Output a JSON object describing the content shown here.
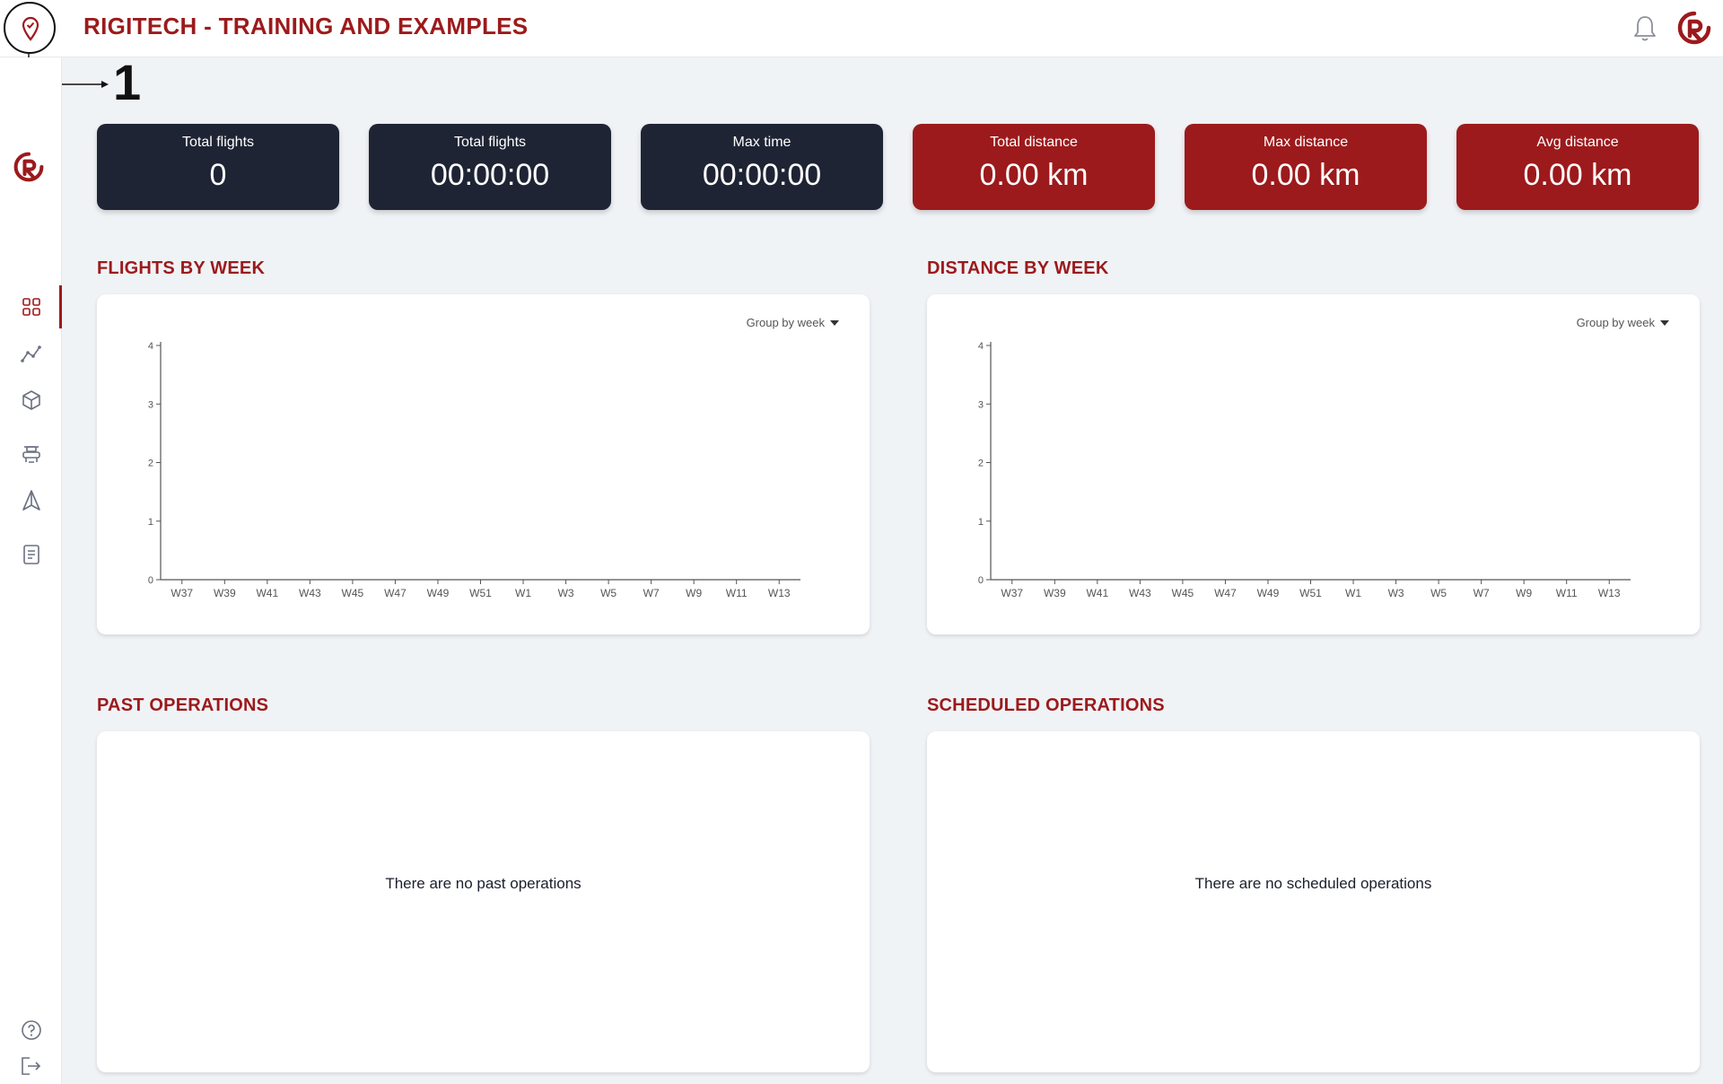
{
  "header": {
    "title": "RIGITECH - TRAINING AND EXAMPLES",
    "annotation_number": "1"
  },
  "sidebar": {
    "items": [
      {
        "icon": "dashboard-icon",
        "active": true
      },
      {
        "icon": "analytics-icon",
        "active": false
      },
      {
        "icon": "box-icon",
        "active": false
      },
      {
        "icon": "drone-icon",
        "active": false
      },
      {
        "icon": "navigation-icon",
        "active": false
      },
      {
        "icon": "document-icon",
        "active": false
      }
    ],
    "bottom": [
      {
        "icon": "help-icon"
      },
      {
        "icon": "logout-icon"
      }
    ]
  },
  "stats": [
    {
      "label": "Total flights",
      "value": "0",
      "theme": "dark"
    },
    {
      "label": "Total flights",
      "value": "00:00:00",
      "theme": "dark"
    },
    {
      "label": "Max time",
      "value": "00:00:00",
      "theme": "dark"
    },
    {
      "label": "Total distance",
      "value": "0.00 km",
      "theme": "red"
    },
    {
      "label": "Max distance",
      "value": "0.00 km",
      "theme": "red"
    },
    {
      "label": "Avg distance",
      "value": "0.00 km",
      "theme": "red"
    }
  ],
  "sections": {
    "flights_by_week": {
      "title": "FLIGHTS BY WEEK",
      "group_by": "Group by week"
    },
    "distance_by_week": {
      "title": "DISTANCE BY WEEK",
      "group_by": "Group by week"
    },
    "past_operations": {
      "title": "PAST OPERATIONS",
      "empty": "There are no past operations"
    },
    "scheduled_operations": {
      "title": "SCHEDULED OPERATIONS",
      "empty": "There are no scheduled operations"
    }
  },
  "colors": {
    "accent": "#9c1a1c",
    "dark_card": "#1f2435",
    "background": "#f0f3f6"
  },
  "chart_data": [
    {
      "type": "bar",
      "title": "FLIGHTS BY WEEK",
      "categories": [
        "W37",
        "W39",
        "W41",
        "W43",
        "W45",
        "W47",
        "W49",
        "W51",
        "W1",
        "W3",
        "W5",
        "W7",
        "W9",
        "W11",
        "W13"
      ],
      "values": [
        0,
        0,
        0,
        0,
        0,
        0,
        0,
        0,
        0,
        0,
        0,
        0,
        0,
        0,
        0
      ],
      "yticks": [
        0,
        1,
        2,
        3,
        4
      ],
      "ylim": [
        0,
        4
      ],
      "xlabel": "",
      "ylabel": "",
      "grid": false
    },
    {
      "type": "bar",
      "title": "DISTANCE BY WEEK",
      "categories": [
        "W37",
        "W39",
        "W41",
        "W43",
        "W45",
        "W47",
        "W49",
        "W51",
        "W1",
        "W3",
        "W5",
        "W7",
        "W9",
        "W11",
        "W13"
      ],
      "values": [
        0,
        0,
        0,
        0,
        0,
        0,
        0,
        0,
        0,
        0,
        0,
        0,
        0,
        0,
        0
      ],
      "yticks": [
        0,
        1,
        2,
        3,
        4
      ],
      "ylim": [
        0,
        4
      ],
      "xlabel": "",
      "ylabel": "",
      "grid": false
    }
  ]
}
